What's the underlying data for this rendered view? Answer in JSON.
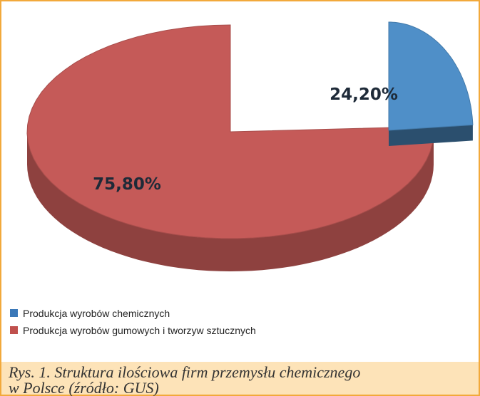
{
  "chart_data": {
    "type": "pie",
    "categories": [
      "Produkcja wyrobów chemicznych",
      "Produkcja wyrobów gumowych i tworzyw sztucznych"
    ],
    "values": [
      24.2,
      75.8
    ],
    "value_labels": [
      "24,20%",
      "75,80%"
    ],
    "colors": [
      "#4f8fc8",
      "#c55a58"
    ],
    "caption": [
      "Rys. 1. Struktura ilościowa firm przemysłu chemicznego",
      "w Polsce (źródło: GUS)"
    ]
  }
}
